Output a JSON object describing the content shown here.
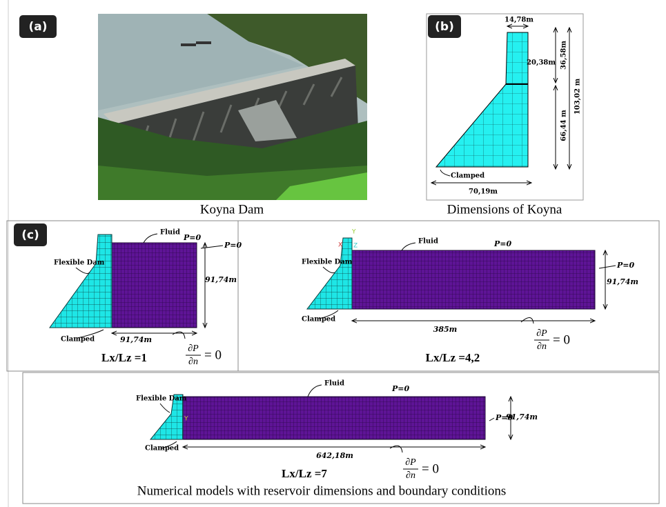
{
  "panels": {
    "a": {
      "label": "(a)",
      "caption": "Koyna Dam"
    },
    "b": {
      "label": "(b)",
      "crest_width": "14,78m",
      "width_at_break": "20,38m",
      "upper_height": "36,58m",
      "total_height": "103,02 m",
      "lower_height": "66,44 m",
      "base_note": "Clamped",
      "base_width": "70,19m",
      "caption": "Dimensions of Koyna"
    },
    "c": {
      "label": "(c)",
      "models": [
        {
          "fluid": "Fluid",
          "top_condition": "P=0",
          "dam": "Flexible Dam",
          "end_condition": "P=0",
          "height": "91,74m",
          "base": "Clamped",
          "length": "91,74m",
          "flux_numerator": "∂P",
          "flux_denominator": "∂n",
          "flux_rhs": "= 0",
          "ratio": "Lx/Lz =1"
        },
        {
          "fluid": "Fluid",
          "top_condition": "P=0",
          "dam": "Flexible Dam",
          "end_condition": "P=0",
          "height": "91,74m",
          "base": "Clamped",
          "length": "385m",
          "flux_numerator": "∂P",
          "flux_denominator": "∂n",
          "flux_rhs": "= 0",
          "ratio": "Lx/Lz =4,2",
          "axes": [
            "Y",
            "X",
            "Z"
          ]
        },
        {
          "fluid": "Fluid",
          "top_condition": "P=0",
          "dam": "Flexible Dam",
          "end_condition": "P=0",
          "height": "91,74m",
          "base": "Clamped",
          "length": "642,18m",
          "flux_numerator": "∂P",
          "flux_denominator": "∂n",
          "flux_rhs": "= 0",
          "ratio": "Lx/Lz =7",
          "axes": [
            "Y"
          ]
        }
      ],
      "caption": "Numerical models with reservoir dimensions and boundary conditions"
    }
  }
}
